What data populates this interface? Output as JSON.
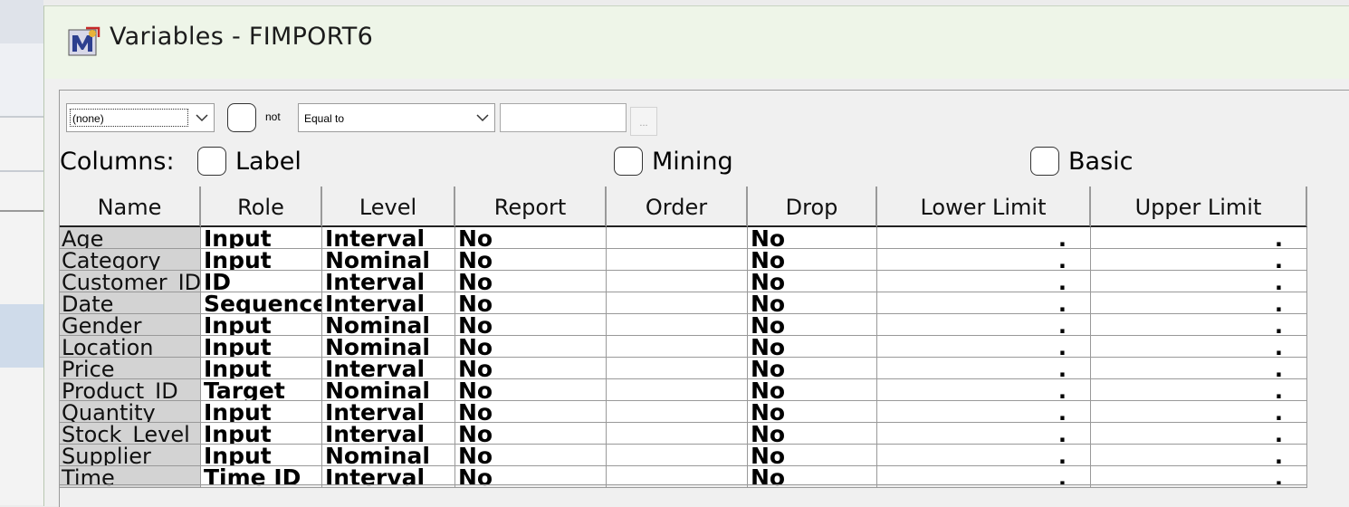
{
  "window": {
    "title": "Variables - FIMPORT6"
  },
  "filter": {
    "column_select": "(none)",
    "not_label": "not",
    "operator_select": "Equal to",
    "value": "",
    "ellipsis_label": "..."
  },
  "columns_bar": {
    "label": "Columns:",
    "label_checkbox": "Label",
    "mining_checkbox": "Mining",
    "basic_checkbox": "Basic"
  },
  "table": {
    "headers": [
      "Name",
      "Role",
      "Level",
      "Report",
      "Order",
      "Drop",
      "Lower Limit",
      "Upper Limit"
    ],
    "rows": [
      [
        "Age",
        "Input",
        "Interval",
        "No",
        "",
        "No",
        ".",
        "."
      ],
      [
        "Category",
        "Input",
        "Nominal",
        "No",
        "",
        "No",
        ".",
        "."
      ],
      [
        "Customer_ID",
        "ID",
        "Interval",
        "No",
        "",
        "No",
        ".",
        "."
      ],
      [
        "Date",
        "Sequence",
        "Interval",
        "No",
        "",
        "No",
        ".",
        "."
      ],
      [
        "Gender",
        "Input",
        "Nominal",
        "No",
        "",
        "No",
        ".",
        "."
      ],
      [
        "Location",
        "Input",
        "Nominal",
        "No",
        "",
        "No",
        ".",
        "."
      ],
      [
        "Price",
        "Input",
        "Interval",
        "No",
        "",
        "No",
        ".",
        "."
      ],
      [
        "Product_ID",
        "Target",
        "Nominal",
        "No",
        "",
        "No",
        ".",
        "."
      ],
      [
        "Quantity",
        "Input",
        "Interval",
        "No",
        "",
        "No",
        ".",
        "."
      ],
      [
        "Stock_Level",
        "Input",
        "Interval",
        "No",
        "",
        "No",
        ".",
        "."
      ],
      [
        "Supplier",
        "Input",
        "Nominal",
        "No",
        "",
        "No",
        ".",
        "."
      ],
      [
        "Time",
        "Time ID",
        "Interval",
        "No",
        "",
        "No",
        ".",
        "."
      ]
    ]
  },
  "icons": {
    "app": "sas-miner-icon",
    "dropdown": "chevron-down-icon"
  },
  "colors": {
    "titlebar": "#eef5e8",
    "name_column": "#d3d3d3"
  }
}
